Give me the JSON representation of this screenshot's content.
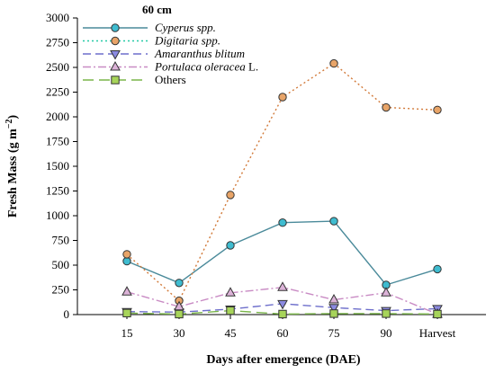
{
  "chart_data": {
    "type": "line",
    "title": "60 cm",
    "xlabel": "Days after emergence (DAE)",
    "ylabel": "Fresh Mass (g m−2)",
    "ylabel_main": "Fresh Mass (g m",
    "ylabel_sup": "−2",
    "ylabel_close": ")",
    "categories": [
      "15",
      "30",
      "45",
      "60",
      "75",
      "90",
      "Harvest"
    ],
    "ylim": [
      0,
      3000
    ],
    "yticks": [
      0,
      250,
      500,
      750,
      1000,
      1250,
      1500,
      1750,
      2000,
      2250,
      2500,
      2750,
      3000
    ],
    "legend_position": "top-left",
    "series": [
      {
        "name": "Cyperus spp.",
        "label_main": "Cyperus spp.",
        "label_suffix": "",
        "italic": true,
        "color": "#4a8a9a",
        "marker_fill": "#3fbcd0",
        "marker": "circle",
        "dash": "",
        "values": [
          540,
          320,
          700,
          930,
          945,
          300,
          460
        ]
      },
      {
        "name": "Digitaria spp.",
        "label_main": "Digitaria spp.",
        "label_suffix": "",
        "italic": true,
        "color": "#d27a3a",
        "legend_color": "#26c9a6",
        "marker_fill": "#e8a468",
        "marker": "circle",
        "dash": "2,3",
        "values": [
          610,
          140,
          1210,
          2200,
          2540,
          2095,
          2070
        ]
      },
      {
        "name": "Amaranthus blitum",
        "label_main": "Amaranthus blitum",
        "label_suffix": "",
        "italic": true,
        "color": "#6d6ecb",
        "marker_fill": "#8b8ae0",
        "marker": "triangle-down",
        "dash": "9,5",
        "values": [
          30,
          25,
          55,
          110,
          70,
          40,
          60
        ]
      },
      {
        "name": "Portulaca oleracea L.",
        "label_main": "Portulaca oleracea",
        "label_suffix": " L.",
        "italic": true,
        "color": "#c98bc4",
        "marker_fill": "#dcb3d8",
        "marker": "triangle-up",
        "dash": "9,3,2,3",
        "values": [
          230,
          80,
          220,
          275,
          150,
          220,
          5
        ]
      },
      {
        "name": "Others",
        "label_main": "Others",
        "label_suffix": "",
        "italic": false,
        "color": "#7ab54a",
        "marker_fill": "#a7d45a",
        "marker": "square",
        "dash": "12,6",
        "values": [
          15,
          5,
          40,
          5,
          10,
          10,
          5
        ]
      }
    ]
  }
}
